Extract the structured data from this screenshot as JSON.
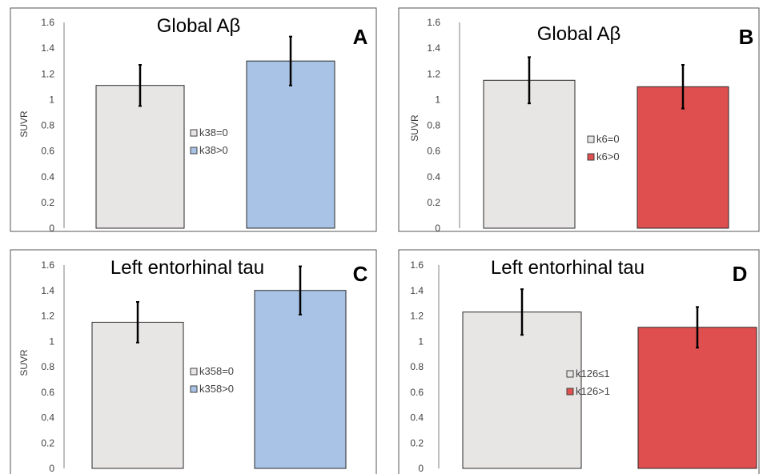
{
  "colors": {
    "light_gray": "#e8e5e5",
    "blue": "#a8c3e6",
    "red": "#df4f4f",
    "bar_border": "#2a2a2a",
    "axis": "#7f7f7f"
  },
  "chart_data": [
    {
      "type": "bar",
      "panel_label": "A",
      "title": "Global Aβ",
      "ylabel": "SUVR",
      "ylim": [
        0,
        1.6
      ],
      "yticks": [
        "0",
        "0.2",
        "0.4",
        "0.6",
        "0.8",
        "1",
        "1.2",
        "1.4",
        "1.6"
      ],
      "legend_position": "center",
      "series": [
        {
          "name": "k38=0",
          "value": 1.11,
          "error": 0.16,
          "color": "#e8e5e5"
        },
        {
          "name": "k38>0",
          "value": 1.3,
          "error": 0.19,
          "color": "#a8c3e6"
        }
      ]
    },
    {
      "type": "bar",
      "panel_label": "B",
      "title": "Global Aβ",
      "ylabel": "SUVR",
      "ylim": [
        0,
        1.6
      ],
      "yticks": [
        "0",
        "0.2",
        "0.4",
        "0.6",
        "0.8",
        "1",
        "1.2",
        "1.4",
        "1.6"
      ],
      "legend_position": "center",
      "series": [
        {
          "name": "k6=0",
          "value": 1.15,
          "error": 0.18,
          "color": "#e8e5e5"
        },
        {
          "name": "k6>0",
          "value": 1.1,
          "error": 0.17,
          "color": "#df4f4f"
        }
      ]
    },
    {
      "type": "bar",
      "panel_label": "C",
      "title": "Left entorhinal tau",
      "ylabel": "SUVR",
      "ylim": [
        0,
        1.6
      ],
      "yticks": [
        "0",
        "0.2",
        "0.4",
        "0.6",
        "0.8",
        "1",
        "1.2",
        "1.4",
        "1.6"
      ],
      "legend_position": "center",
      "series": [
        {
          "name": "k358=0",
          "value": 1.15,
          "error": 0.16,
          "color": "#e8e5e5"
        },
        {
          "name": "k358>0",
          "value": 1.4,
          "error": 0.19,
          "color": "#a8c3e6"
        }
      ]
    },
    {
      "type": "bar",
      "panel_label": "D",
      "title": "Left entorhinal tau",
      "ylabel": "",
      "ylim": [
        0,
        1.6
      ],
      "yticks": [
        "0",
        "0.2",
        "0.4",
        "0.6",
        "0.8",
        "1",
        "1.2",
        "1.4",
        "1.6"
      ],
      "legend_position": "center",
      "series": [
        {
          "name": "k126≤1",
          "value": 1.23,
          "error": 0.18,
          "color": "#e8e5e5"
        },
        {
          "name": "k126>1",
          "value": 1.11,
          "error": 0.16,
          "color": "#df4f4f"
        }
      ]
    }
  ]
}
